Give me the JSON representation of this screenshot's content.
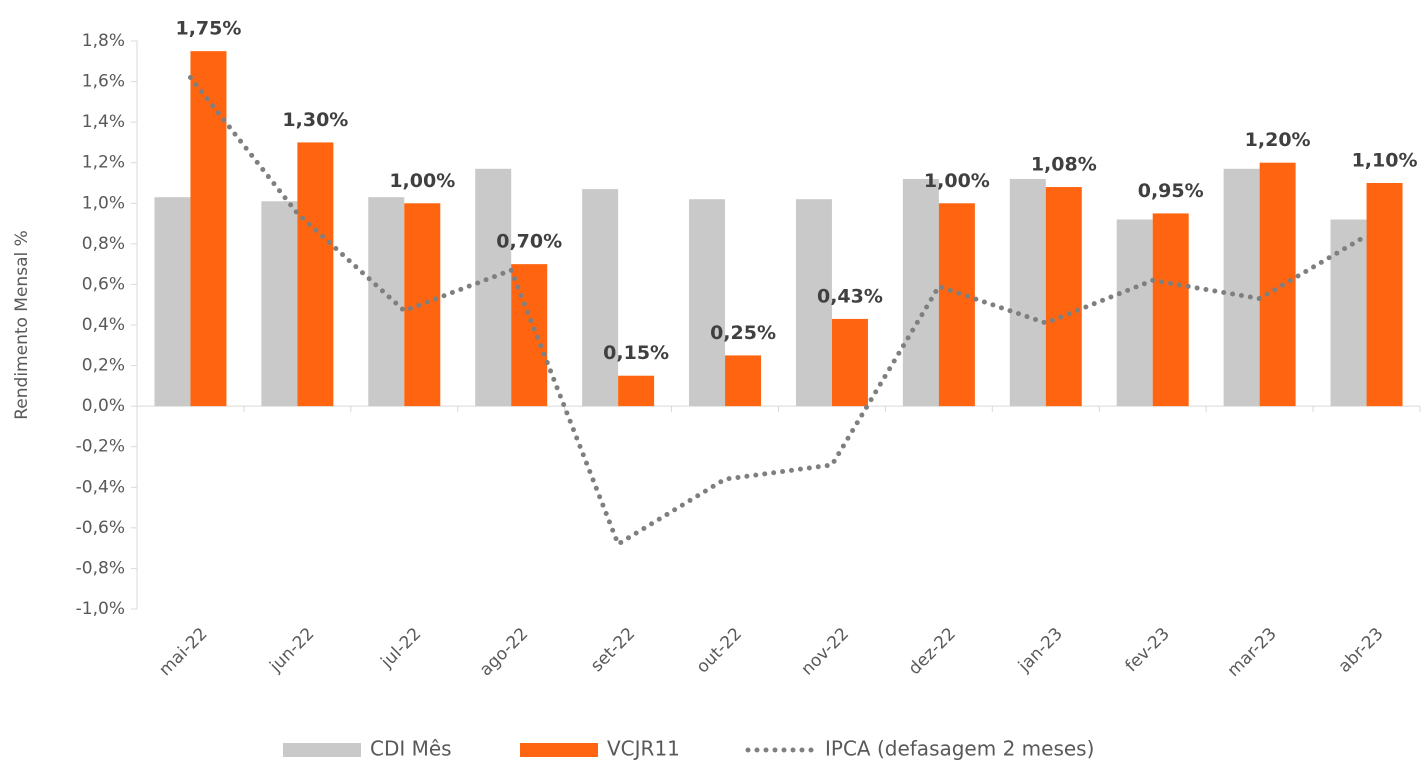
{
  "chart_data": {
    "type": "bar",
    "y_label": "Rendimento Mensal %",
    "categories": [
      "mai-22",
      "jun-22",
      "jul-22",
      "ago-22",
      "set-22",
      "out-22",
      "nov-22",
      "dez-22",
      "jan-23",
      "fev-23",
      "mar-23",
      "abr-23"
    ],
    "series": [
      {
        "name": "CDI Mês",
        "type": "bar",
        "color": "#c9c9c9",
        "values": [
          1.03,
          1.01,
          1.03,
          1.17,
          1.07,
          1.02,
          1.02,
          1.12,
          1.12,
          0.92,
          1.17,
          0.92
        ]
      },
      {
        "name": "VCJR11",
        "type": "bar",
        "color": "#ff6510",
        "values": [
          1.75,
          1.3,
          1.0,
          0.7,
          0.15,
          0.25,
          0.43,
          1.0,
          1.08,
          0.95,
          1.2,
          1.1
        ],
        "value_labels": [
          "1,75%",
          "1,30%",
          "1,00%",
          "0,70%",
          "0,15%",
          "0,25%",
          "0,43%",
          "1,00%",
          "1,08%",
          "0,95%",
          "1,20%",
          "1,10%"
        ]
      },
      {
        "name": "IPCA (defasagem 2 meses)",
        "type": "line",
        "color": "#7f7f7f",
        "values": [
          1.62,
          0.95,
          0.47,
          0.67,
          -0.68,
          -0.36,
          -0.29,
          0.59,
          0.41,
          0.62,
          0.53,
          0.84
        ]
      }
    ],
    "ylim": [
      -1.0,
      1.8
    ],
    "yticks": [
      {
        "value": -1.0,
        "label": "-1,0%"
      },
      {
        "value": -0.8,
        "label": "-0,8%"
      },
      {
        "value": -0.6,
        "label": "-0,6%"
      },
      {
        "value": -0.4,
        "label": "-0,4%"
      },
      {
        "value": -0.2,
        "label": "-0,2%"
      },
      {
        "value": 0.0,
        "label": "0,0%"
      },
      {
        "value": 0.2,
        "label": "0,2%"
      },
      {
        "value": 0.4,
        "label": "0,4%"
      },
      {
        "value": 0.6,
        "label": "0,6%"
      },
      {
        "value": 0.8,
        "label": "0,8%"
      },
      {
        "value": 1.0,
        "label": "1,0%"
      },
      {
        "value": 1.2,
        "label": "1,2%"
      },
      {
        "value": 1.4,
        "label": "1,4%"
      },
      {
        "value": 1.6,
        "label": "1,6%"
      },
      {
        "value": 1.8,
        "label": "1,8%"
      }
    ],
    "grid": false,
    "legend": "bottom"
  }
}
